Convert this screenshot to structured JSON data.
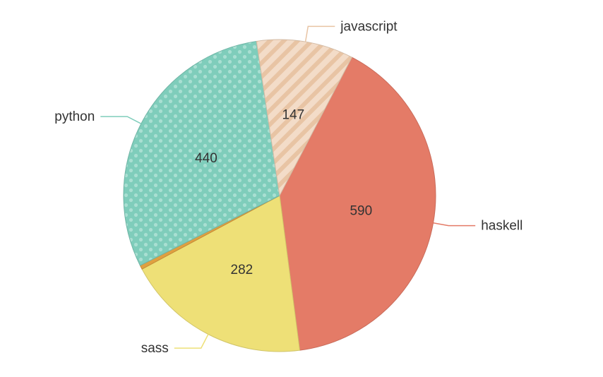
{
  "chart_data": {
    "type": "pie",
    "categories": [
      "haskell",
      "sass",
      "python",
      "javascript"
    ],
    "values": [
      590,
      282,
      440,
      147
    ],
    "small_slice": {
      "color": "#e0a040",
      "note_value": 6
    },
    "colors": [
      "#e47b67",
      "#eee077",
      "#7fcdbb",
      "#f0d4bc"
    ],
    "patterns": [
      "none",
      "none",
      "dots",
      "stripes"
    ],
    "label_sides": [
      "right",
      "left",
      "left",
      "right"
    ],
    "title": "",
    "legend": "none"
  }
}
